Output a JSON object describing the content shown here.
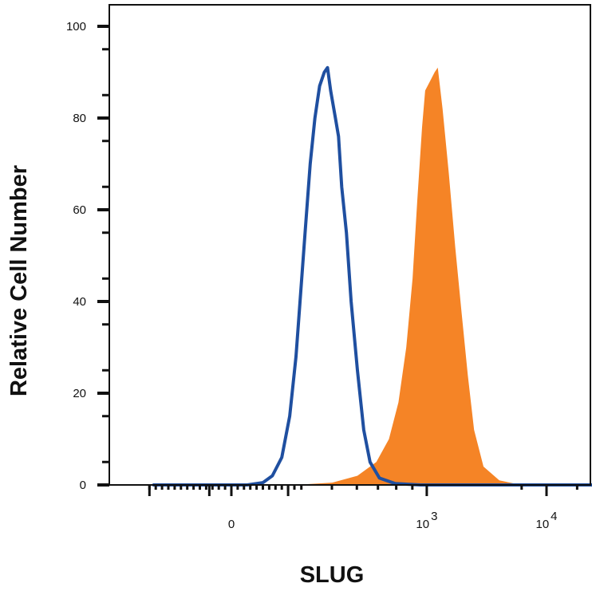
{
  "chart_data": {
    "type": "area",
    "title": "",
    "xlabel": "SLUG",
    "ylabel": "Relative Cell Number",
    "x_scale": "biexponential",
    "ylim": [
      0,
      100
    ],
    "yticks": [
      0,
      20,
      40,
      60,
      80,
      100
    ],
    "xticks": [
      {
        "base": "0",
        "exp": ""
      },
      {
        "base": "10",
        "exp": "3"
      },
      {
        "base": "10",
        "exp": "4"
      }
    ],
    "grid": false,
    "legend": "none",
    "series": [
      {
        "style": "filled",
        "color": "#F58426",
        "points": [
          [
            0.2,
            0
          ],
          [
            0.32,
            0.5
          ],
          [
            0.4,
            2
          ],
          [
            0.46,
            5
          ],
          [
            0.5,
            10
          ],
          [
            0.53,
            18
          ],
          [
            0.555,
            30
          ],
          [
            0.575,
            45
          ],
          [
            0.59,
            62
          ],
          [
            0.605,
            78
          ],
          [
            0.615,
            86
          ],
          [
            0.63,
            88
          ],
          [
            0.645,
            90
          ],
          [
            0.655,
            91
          ],
          [
            0.67,
            82
          ],
          [
            0.69,
            68
          ],
          [
            0.71,
            52
          ],
          [
            0.73,
            38
          ],
          [
            0.75,
            24
          ],
          [
            0.77,
            12
          ],
          [
            0.8,
            4
          ],
          [
            0.85,
            1
          ],
          [
            0.92,
            0
          ]
        ]
      },
      {
        "style": "line",
        "color": "#1F4FA0",
        "points": [
          [
            -0.25,
            0
          ],
          [
            0.05,
            0
          ],
          [
            0.1,
            0.5
          ],
          [
            0.13,
            2
          ],
          [
            0.16,
            6
          ],
          [
            0.185,
            15
          ],
          [
            0.205,
            28
          ],
          [
            0.22,
            42
          ],
          [
            0.235,
            56
          ],
          [
            0.25,
            70
          ],
          [
            0.265,
            80
          ],
          [
            0.28,
            87
          ],
          [
            0.295,
            90
          ],
          [
            0.305,
            91
          ],
          [
            0.315,
            86
          ],
          [
            0.33,
            80
          ],
          [
            0.34,
            76
          ],
          [
            0.35,
            65
          ],
          [
            0.365,
            55
          ],
          [
            0.38,
            40
          ],
          [
            0.4,
            25
          ],
          [
            0.42,
            12
          ],
          [
            0.44,
            5
          ],
          [
            0.47,
            1.5
          ],
          [
            0.52,
            0.3
          ],
          [
            0.6,
            0
          ],
          [
            1.6,
            0
          ]
        ]
      }
    ]
  }
}
